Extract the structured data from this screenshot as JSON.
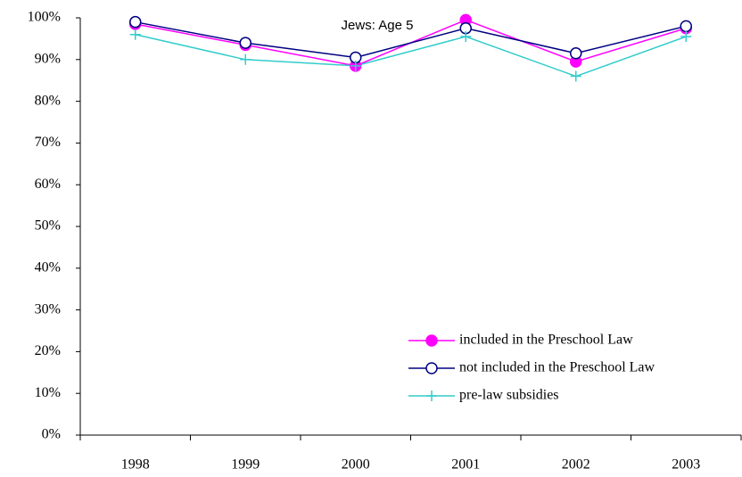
{
  "chart_data": {
    "type": "line",
    "title": "Jews: Age 5",
    "categories": [
      "1998",
      "1999",
      "2000",
      "2001",
      "2002",
      "2003"
    ],
    "series": [
      {
        "name": "included in the Preschool Law",
        "color": "#ff00ff",
        "marker": "filled-circle",
        "values": [
          98.5,
          93.5,
          88.5,
          99.5,
          89.5,
          97.5
        ]
      },
      {
        "name": "not included in the Preschool Law",
        "color": "#000080",
        "marker": "open-circle",
        "values": [
          99,
          94,
          90.5,
          97.5,
          91.5,
          98
        ]
      },
      {
        "name": "pre-law subsidies",
        "color": "#33cccc",
        "marker": "plus",
        "values": [
          96,
          90,
          88.5,
          95.5,
          86,
          95.5
        ]
      }
    ],
    "ylim": [
      0,
      100
    ],
    "yticks": [
      {
        "value": 0,
        "label": "0%"
      },
      {
        "value": 10,
        "label": "10%"
      },
      {
        "value": 20,
        "label": "20%"
      },
      {
        "value": 30,
        "label": "30%"
      },
      {
        "value": 40,
        "label": "40%"
      },
      {
        "value": 50,
        "label": "50%"
      },
      {
        "value": 60,
        "label": "60%"
      },
      {
        "value": 70,
        "label": "70%"
      },
      {
        "value": 80,
        "label": "80%"
      },
      {
        "value": 90,
        "label": "90%"
      },
      {
        "value": 100,
        "label": "100%"
      }
    ],
    "grid": false,
    "legend": "lower right"
  }
}
